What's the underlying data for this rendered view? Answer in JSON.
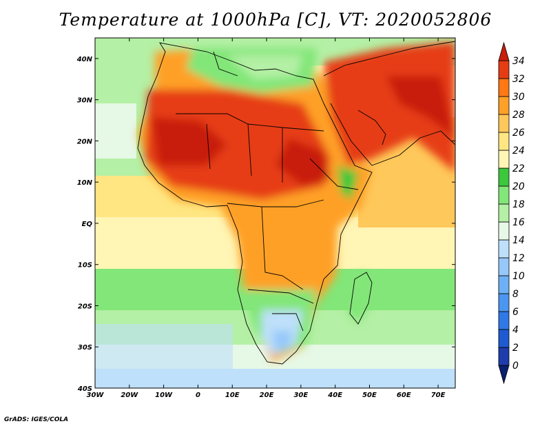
{
  "title": "Temperature at 1000hPa [C], VT: 2020052806",
  "credit": "GrADS: IGES/COLA",
  "map": {
    "lon_range": [
      -30,
      75
    ],
    "lat_range": [
      -40,
      45
    ],
    "lon_ticks": [
      {
        "value": -30,
        "label": "30W"
      },
      {
        "value": -20,
        "label": "20W"
      },
      {
        "value": -10,
        "label": "10W"
      },
      {
        "value": 0,
        "label": "0"
      },
      {
        "value": 10,
        "label": "10E"
      },
      {
        "value": 20,
        "label": "20E"
      },
      {
        "value": 30,
        "label": "30E"
      },
      {
        "value": 40,
        "label": "40E"
      },
      {
        "value": 50,
        "label": "50E"
      },
      {
        "value": 60,
        "label": "60E"
      },
      {
        "value": 70,
        "label": "70E"
      }
    ],
    "lat_ticks": [
      {
        "value": 40,
        "label": "40N"
      },
      {
        "value": 30,
        "label": "30N"
      },
      {
        "value": 20,
        "label": "20N"
      },
      {
        "value": 10,
        "label": "10N"
      },
      {
        "value": 0,
        "label": "EQ"
      },
      {
        "value": -10,
        "label": "10S"
      },
      {
        "value": -20,
        "label": "20S"
      },
      {
        "value": -30,
        "label": "30S"
      },
      {
        "value": -40,
        "label": "40S"
      }
    ]
  },
  "colorbar": {
    "levels": [
      "0",
      "2",
      "4",
      "6",
      "8",
      "10",
      "12",
      "14",
      "16",
      "18",
      "20",
      "22",
      "24",
      "26",
      "28",
      "30",
      "32",
      "34"
    ],
    "colors": [
      "#0a1f6e",
      "#1e3cab",
      "#1e5ad2",
      "#2f78e6",
      "#4b96f0",
      "#6eb0f5",
      "#96c8fa",
      "#bee0fa",
      "#e6f8e6",
      "#b4f0a5",
      "#82e678",
      "#3cc83c",
      "#fff5b4",
      "#ffe682",
      "#ffc85a",
      "#ffa028",
      "#ff7814",
      "#e63c14",
      "#c81e0a"
    ]
  }
}
